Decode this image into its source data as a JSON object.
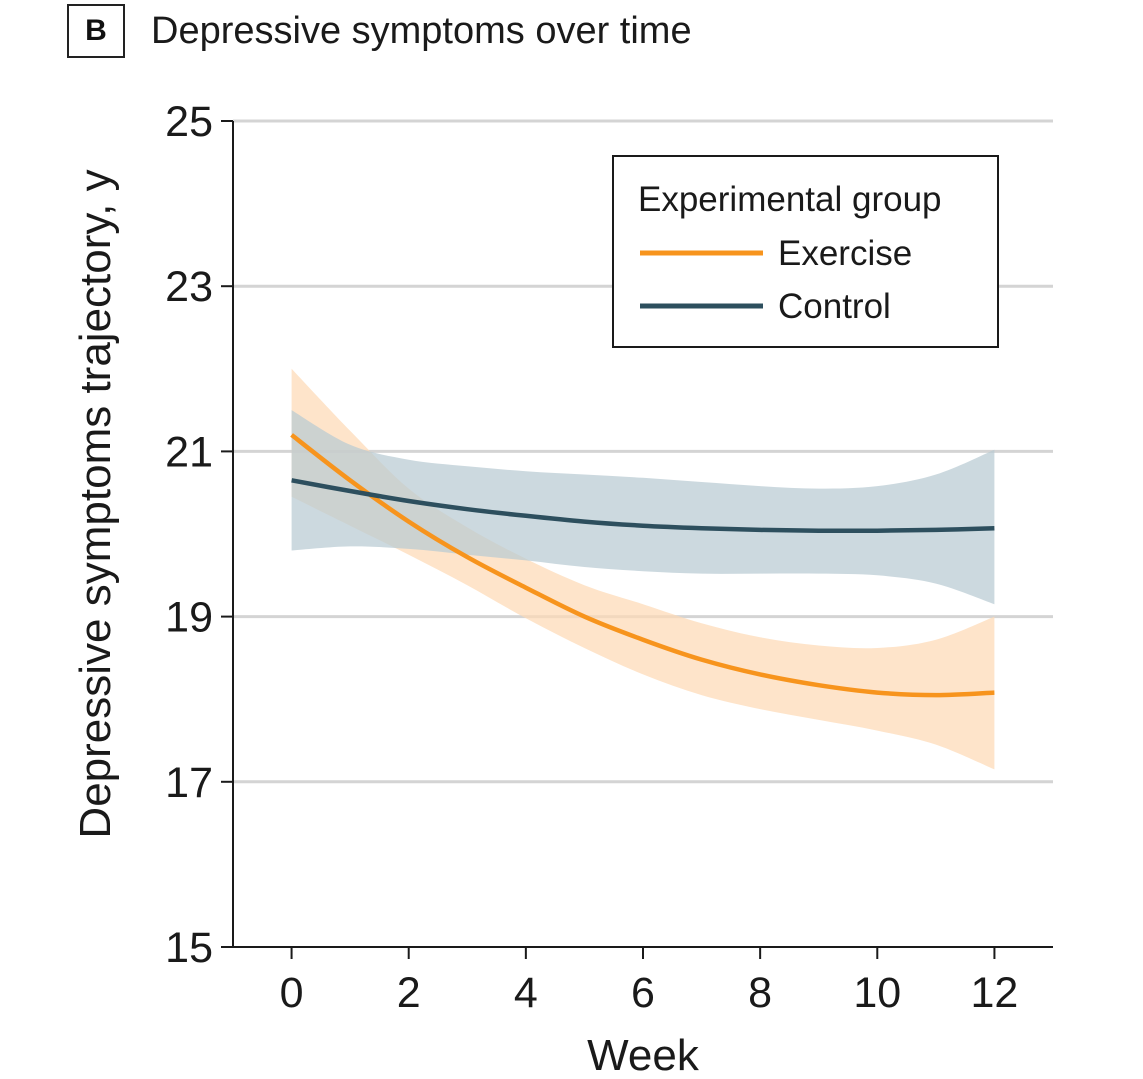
{
  "panel": {
    "label": "B",
    "title": "Depressive symptoms over time"
  },
  "chart_data": {
    "type": "line",
    "title": "Depressive symptoms over time",
    "xlabel": "Week",
    "ylabel": "Depressive symptoms trajectory, y",
    "xlim": [
      -1,
      13
    ],
    "ylim": [
      15,
      25
    ],
    "xticks": [
      0,
      2,
      4,
      6,
      8,
      10,
      12
    ],
    "yticks": [
      15,
      17,
      19,
      21,
      23,
      25
    ],
    "grid": "horizontal",
    "legend": {
      "title": "Experimental group",
      "position": "top-right"
    },
    "series": [
      {
        "name": "Exercise",
        "color": "#f7941d",
        "band_color": "#fdd9b5",
        "x": [
          0,
          1,
          2,
          3,
          4,
          5,
          6,
          7,
          8,
          9,
          10,
          11,
          12
        ],
        "y": [
          21.2,
          20.65,
          20.15,
          19.72,
          19.35,
          19.0,
          18.72,
          18.48,
          18.3,
          18.17,
          18.08,
          18.05,
          18.08
        ],
        "lower": [
          20.45,
          20.1,
          19.75,
          19.38,
          18.98,
          18.62,
          18.3,
          18.05,
          17.88,
          17.75,
          17.62,
          17.45,
          17.15
        ],
        "upper": [
          22.0,
          21.25,
          20.55,
          20.08,
          19.7,
          19.38,
          19.15,
          18.92,
          18.75,
          18.65,
          18.62,
          18.72,
          19.0
        ]
      },
      {
        "name": "Control",
        "color": "#2d4f5e",
        "band_color": "#b9cad3",
        "x": [
          0,
          1,
          2,
          3,
          4,
          5,
          6,
          7,
          8,
          9,
          10,
          11,
          12
        ],
        "y": [
          20.65,
          20.52,
          20.4,
          20.3,
          20.22,
          20.15,
          20.1,
          20.07,
          20.05,
          20.04,
          20.04,
          20.05,
          20.07
        ],
        "lower": [
          19.8,
          19.85,
          19.82,
          19.75,
          19.68,
          19.6,
          19.55,
          19.52,
          19.52,
          19.52,
          19.5,
          19.4,
          19.15
        ],
        "upper": [
          21.5,
          21.08,
          20.9,
          20.82,
          20.76,
          20.72,
          20.68,
          20.63,
          20.58,
          20.55,
          20.58,
          20.72,
          21.02
        ]
      }
    ]
  }
}
